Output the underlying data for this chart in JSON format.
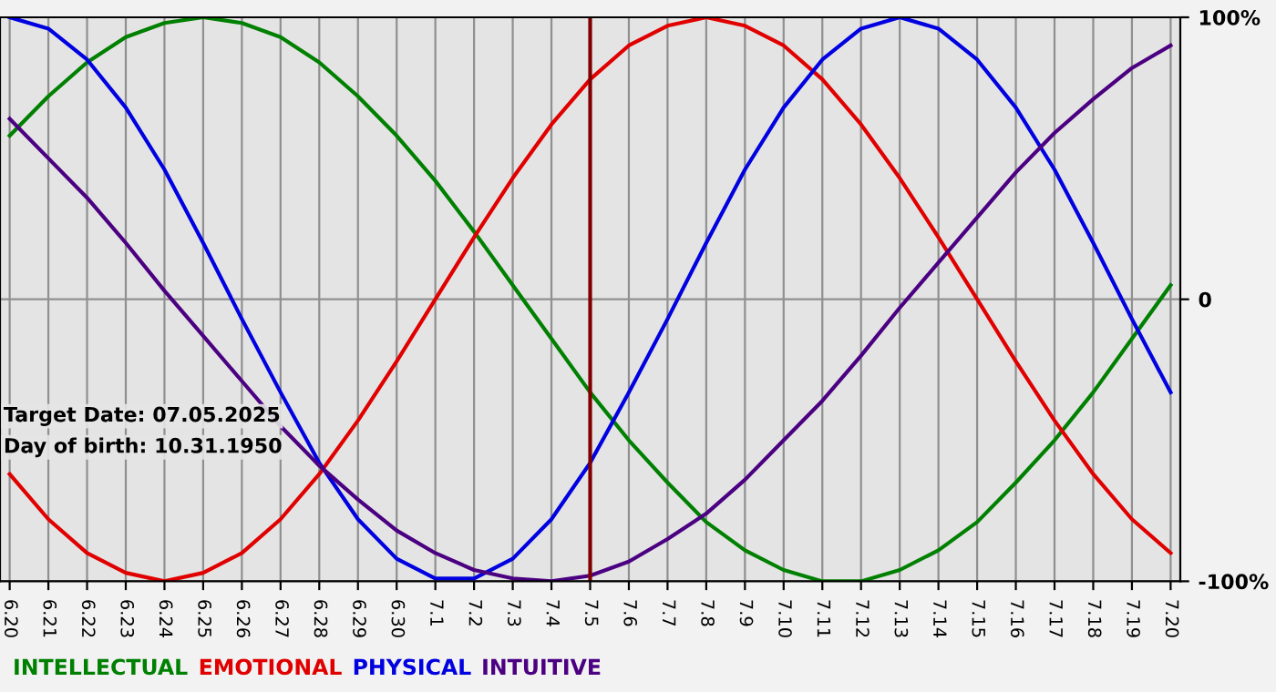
{
  "chart_data": {
    "type": "line",
    "categories": [
      "6.20",
      "6.21",
      "6.22",
      "6.23",
      "6.24",
      "6.25",
      "6.26",
      "6.27",
      "6.28",
      "6.29",
      "6.30",
      "7.1",
      "7.2",
      "7.3",
      "7.4",
      "7.5",
      "7.6",
      "7.7",
      "7.8",
      "7.9",
      "7.10",
      "7.11",
      "7.12",
      "7.13",
      "7.14",
      "7.15",
      "7.16",
      "7.17",
      "7.18",
      "7.19",
      "7.20"
    ],
    "series": [
      {
        "name": "INTELLECTUAL",
        "color": "#008000",
        "values": [
          58,
          72,
          84,
          93,
          98,
          100,
          98,
          93,
          84,
          72,
          58,
          42,
          24,
          5,
          -14,
          -33,
          -50,
          -65,
          -79,
          -89,
          -96,
          -100,
          -100,
          -96,
          -89,
          -79,
          -65,
          -50,
          -33,
          -14,
          5
        ]
      },
      {
        "name": "EMOTIONAL",
        "color": "#e00000",
        "values": [
          -62,
          -78,
          -90,
          -97,
          -100,
          -97,
          -90,
          -78,
          -62,
          -43,
          -22,
          0,
          22,
          43,
          62,
          78,
          90,
          97,
          100,
          97,
          90,
          78,
          62,
          43,
          22,
          0,
          -22,
          -43,
          -62,
          -78,
          -90
        ]
      },
      {
        "name": "PHYSICAL",
        "color": "#0000e0",
        "values": [
          100,
          96,
          85,
          68,
          46,
          20,
          -7,
          -33,
          -58,
          -78,
          -92,
          -99,
          -99,
          -92,
          -78,
          -58,
          -33,
          -7,
          20,
          46,
          68,
          85,
          96,
          100,
          96,
          85,
          68,
          46,
          20,
          -7,
          -33
        ]
      },
      {
        "name": "INTUITIVE",
        "color": "#4b0082",
        "values": [
          64,
          50,
          36,
          20,
          3,
          -13,
          -29,
          -45,
          -59,
          -71,
          -82,
          -90,
          -96,
          -99,
          -100,
          -98,
          -93,
          -85,
          -76,
          -64,
          -50,
          -36,
          -20,
          -3,
          13,
          29,
          45,
          59,
          71,
          82,
          90
        ]
      }
    ],
    "ylim": [
      -100,
      100
    ],
    "yticks": [
      {
        "value": 100,
        "label": "100%"
      },
      0,
      {
        "value": -100,
        "label": "-100%"
      }
    ],
    "grid": true,
    "legend": "bottom",
    "line_style": "solid",
    "ref_lines": [
      {
        "axis": "x",
        "value": "7.5",
        "color": "#800000"
      }
    ],
    "annotations": [
      "Target Date: 07.05.2025",
      "Day of birth: 10.31.1950"
    ]
  }
}
